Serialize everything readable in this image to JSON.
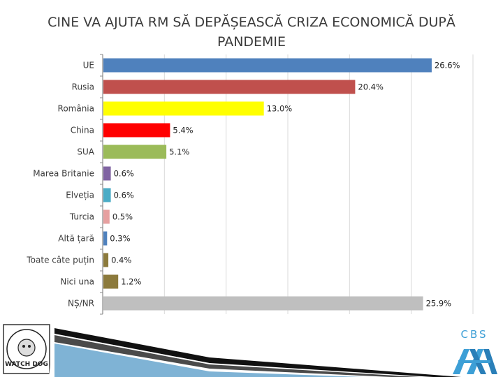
{
  "chart_data": {
    "type": "bar",
    "orientation": "horizontal",
    "title": "CINE VA AJUTA RM SĂ DEPĂȘEASCĂ CRIZA ECONOMICĂ DUPĂ PANDEMIE",
    "categories": [
      "UE",
      "Rusia",
      "România",
      "China",
      "SUA",
      "Marea Britanie",
      "Elveția",
      "Turcia",
      "Altă țară",
      "Toate câte puțin",
      "Nici una",
      "NȘ/NR"
    ],
    "values": [
      26.6,
      20.4,
      13.0,
      5.4,
      5.1,
      0.6,
      0.6,
      0.5,
      0.3,
      0.4,
      1.2,
      25.9
    ],
    "value_labels": [
      "26.6%",
      "20.4%",
      "13.0%",
      "5.4%",
      "5.1%",
      "0.6%",
      "0.6%",
      "0.5%",
      "0.3%",
      "0.4%",
      "1.2%",
      "25.9%"
    ],
    "colors": [
      "#4f81bd",
      "#c0504d",
      "#ffff00",
      "#ff0000",
      "#9bbb59",
      "#8064a2",
      "#4bacc6",
      "#e6a0a0",
      "#4f81bd",
      "#8c7a3c",
      "#8c7a3c",
      "#bfbfbf"
    ],
    "xlim": [
      0,
      30
    ],
    "grid": true,
    "legend": "none"
  },
  "logos": {
    "left_text": "WATCH DOG",
    "right_text": "CBS"
  }
}
